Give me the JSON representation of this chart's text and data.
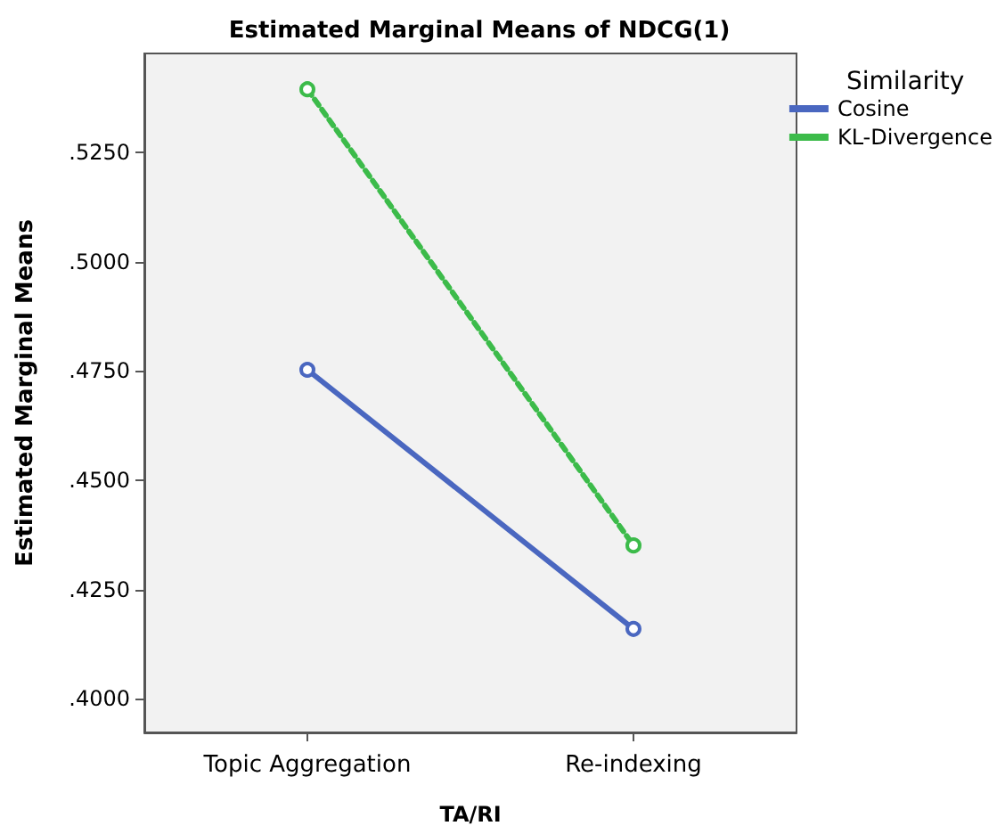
{
  "chart_data": {
    "type": "line",
    "title": "Estimated Marginal Means of NDCG(1)",
    "xlabel": "TA/RI",
    "ylabel": "Estimated Marginal Means",
    "legend_title": "Similarity",
    "categories": [
      "Topic Aggregation",
      "Re-indexing"
    ],
    "series": [
      {
        "name": "Cosine",
        "color": "#4a67c0",
        "values": [
          0.4753,
          0.416
        ],
        "line_style": "solid"
      },
      {
        "name": "KL-Divergence",
        "color": "#3cbb4a",
        "values": [
          0.5395,
          0.4351
        ],
        "line_style": "dotted"
      }
    ],
    "ylim": [
      0.3923,
      0.5477
    ],
    "yticks": [
      {
        "value": 0.4,
        "label": ".4000"
      },
      {
        "value": 0.425,
        "label": ".4250"
      },
      {
        "value": 0.45,
        "label": ".4500"
      },
      {
        "value": 0.475,
        "label": ".4750"
      },
      {
        "value": 0.5,
        "label": ".5000"
      },
      {
        "value": 0.525,
        "label": ".5250"
      }
    ],
    "grid": false,
    "legend": "top right",
    "marker": "circle"
  }
}
